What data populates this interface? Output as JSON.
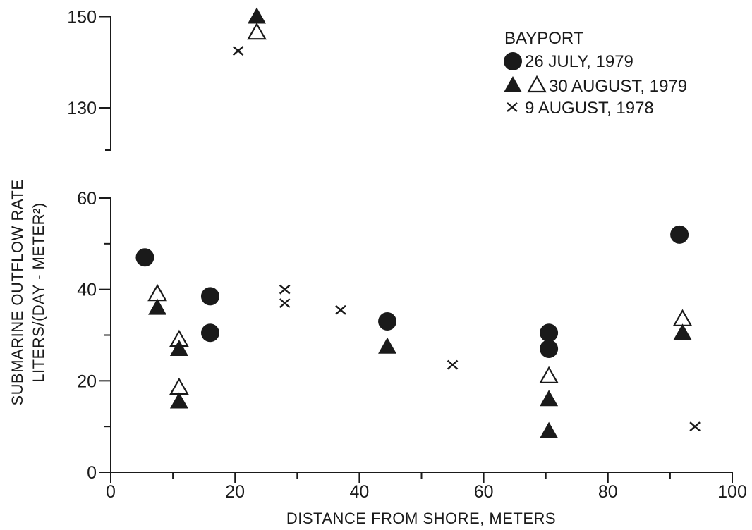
{
  "chart_data": {
    "type": "scatter",
    "xlabel": "DISTANCE FROM SHORE, METERS",
    "ylabel": [
      "SUBMARINE OUTFLOW RATE",
      "LITERS/(DAY - METER²)"
    ],
    "xlim": [
      0,
      100
    ],
    "ylim_lower": [
      0,
      60
    ],
    "ylim_upper": [
      120,
      150
    ],
    "x_ticks": [
      "0",
      "20",
      "40",
      "60",
      "80",
      "100"
    ],
    "y_ticks_lower": [
      "0",
      "20",
      "40",
      "60"
    ],
    "y_ticks_upper": [
      "130",
      "150"
    ],
    "axis_break": true,
    "legend": {
      "title": "BAYPORT",
      "placement": "top-right",
      "entries": [
        {
          "label": "26  JULY, 1979",
          "markers": [
            "filled-circle"
          ]
        },
        {
          "label": "30 AUGUST, 1979",
          "markers": [
            "filled-triangle",
            "open-triangle"
          ]
        },
        {
          "label": "9  AUGUST, 1978",
          "markers": [
            "cross"
          ]
        }
      ]
    },
    "series": [
      {
        "marker": "filled-circle",
        "points": [
          [
            5.5,
            47
          ],
          [
            16,
            38.5
          ],
          [
            16,
            30.5
          ],
          [
            44.5,
            33
          ],
          [
            70.5,
            30.5
          ],
          [
            70.5,
            27
          ],
          [
            91.5,
            52
          ]
        ]
      },
      {
        "marker": "filled-triangle",
        "points": [
          [
            7.5,
            36
          ],
          [
            11,
            27
          ],
          [
            11,
            15.5
          ],
          [
            23.5,
            150
          ],
          [
            44.5,
            27.5
          ],
          [
            70.5,
            16
          ],
          [
            70.5,
            9
          ],
          [
            92,
            30.5
          ]
        ]
      },
      {
        "marker": "open-triangle",
        "points": [
          [
            7.5,
            39
          ],
          [
            11,
            29
          ],
          [
            11,
            18.5
          ],
          [
            23.5,
            146.5
          ],
          [
            70.5,
            21
          ],
          [
            92,
            33.5
          ]
        ]
      },
      {
        "marker": "cross",
        "points": [
          [
            20.5,
            142.5
          ],
          [
            28,
            40
          ],
          [
            28,
            37
          ],
          [
            37,
            35.5
          ],
          [
            55,
            23.5
          ],
          [
            94,
            10
          ]
        ]
      }
    ],
    "colors": {
      "ink": "#1a1a1a",
      "background": "#ffffff"
    }
  }
}
